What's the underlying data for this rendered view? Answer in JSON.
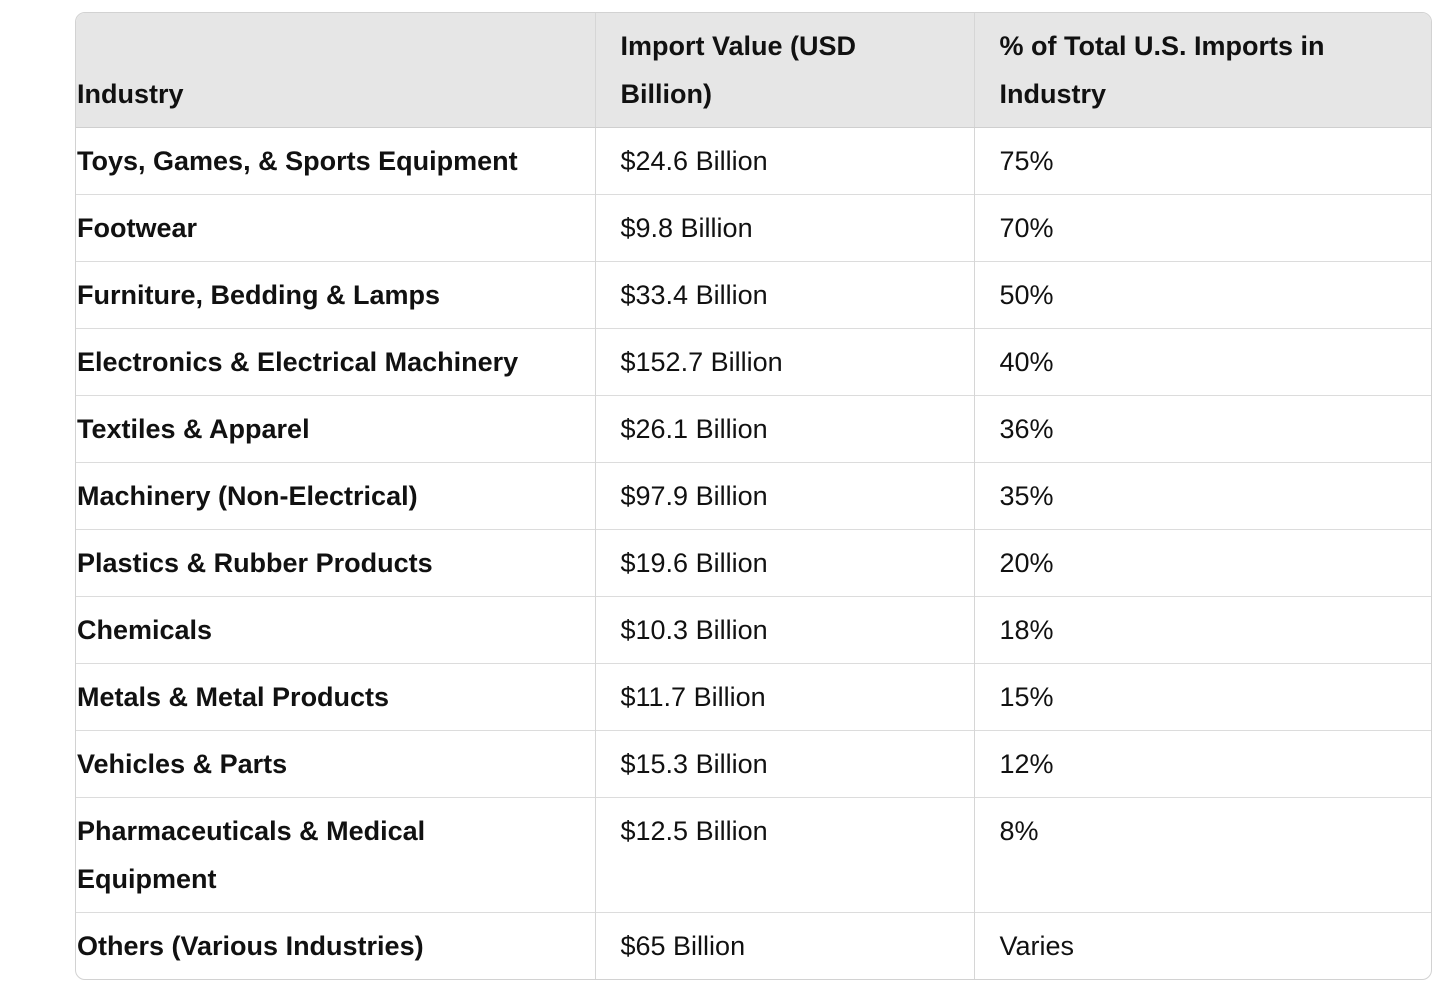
{
  "table": {
    "headers": [
      "Industry",
      "Import Value (USD Billion)",
      "% of Total U.S. Imports in Industry"
    ],
    "rows": [
      [
        "Toys, Games, & Sports Equipment",
        "$24.6 Billion",
        "75%"
      ],
      [
        "Footwear",
        "$9.8 Billion",
        "70%"
      ],
      [
        "Furniture, Bedding & Lamps",
        "$33.4 Billion",
        "50%"
      ],
      [
        "Electronics & Electrical Machinery",
        "$152.7 Billion",
        "40%"
      ],
      [
        "Textiles & Apparel",
        "$26.1 Billion",
        "36%"
      ],
      [
        "Machinery (Non-Electrical)",
        "$97.9 Billion",
        "35%"
      ],
      [
        "Plastics & Rubber Products",
        "$19.6 Billion",
        "20%"
      ],
      [
        "Chemicals",
        "$10.3 Billion",
        "18%"
      ],
      [
        "Metals & Metal Products",
        "$11.7 Billion",
        "15%"
      ],
      [
        "Vehicles & Parts",
        "$15.3 Billion",
        "12%"
      ],
      [
        "Pharmaceuticals & Medical Equipment",
        "$12.5 Billion",
        "8%"
      ],
      [
        "Others (Various Industries)",
        "$65 Billion",
        "Varies"
      ]
    ]
  }
}
